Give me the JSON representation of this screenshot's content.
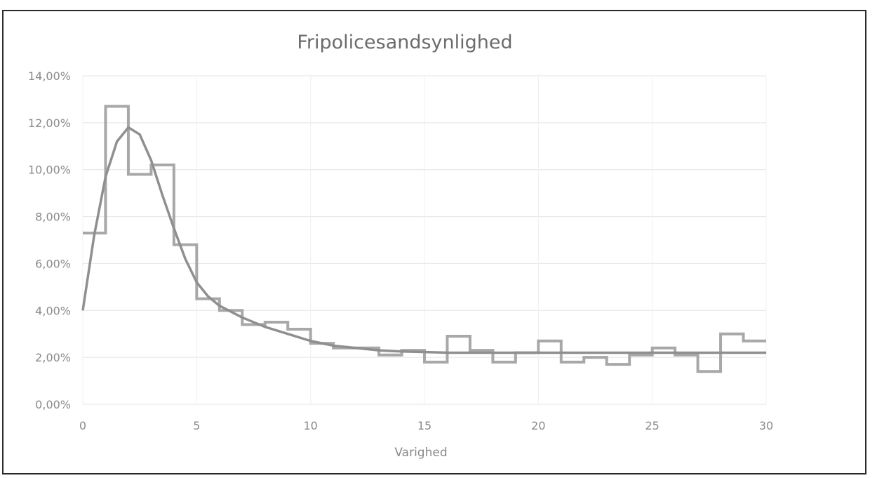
{
  "chart_data": {
    "type": "line",
    "title": "Fripolicesandsynlighed",
    "xlabel": "Varighed",
    "ylabel": "",
    "xlim": [
      0,
      30
    ],
    "ylim": [
      0,
      0.14
    ],
    "x_ticks": [
      "0",
      "5",
      "10",
      "15",
      "20",
      "25",
      "30"
    ],
    "y_ticks": [
      "0,00%",
      "2,00%",
      "4,00%",
      "6,00%",
      "8,00%",
      "10,00%",
      "12,00%",
      "14,00%"
    ],
    "grid": true,
    "legend": "none",
    "colors": {
      "histogram": "#a8a8a8",
      "curve": "#8f8f8f",
      "grid": "#e4e4e4",
      "text": "#8a8a8a"
    },
    "series": [
      {
        "kind": "step",
        "x": [
          0,
          1,
          2,
          3,
          4,
          5,
          6,
          7,
          8,
          9,
          10,
          11,
          12,
          13,
          14,
          15,
          16,
          17,
          18,
          19,
          20,
          21,
          22,
          23,
          24,
          25,
          26,
          27,
          28,
          29
        ],
        "values": [
          0.073,
          0.127,
          0.098,
          0.102,
          0.068,
          0.045,
          0.04,
          0.034,
          0.035,
          0.032,
          0.026,
          0.024,
          0.024,
          0.021,
          0.023,
          0.018,
          0.029,
          0.023,
          0.018,
          0.022,
          0.027,
          0.018,
          0.02,
          0.017,
          0.021,
          0.024,
          0.021,
          0.014,
          0.03,
          0.027
        ]
      },
      {
        "kind": "curve",
        "x": [
          0,
          0.5,
          1,
          1.5,
          2,
          2.5,
          3,
          3.5,
          4,
          4.5,
          5,
          5.5,
          6,
          7,
          8,
          9,
          10,
          11,
          12,
          13,
          14,
          16,
          18,
          20,
          22,
          25,
          28,
          30
        ],
        "values": [
          0.04,
          0.072,
          0.097,
          0.112,
          0.118,
          0.115,
          0.104,
          0.089,
          0.075,
          0.062,
          0.052,
          0.046,
          0.042,
          0.037,
          0.033,
          0.03,
          0.027,
          0.025,
          0.024,
          0.023,
          0.0225,
          0.022,
          0.022,
          0.022,
          0.022,
          0.022,
          0.022,
          0.022
        ]
      }
    ]
  }
}
